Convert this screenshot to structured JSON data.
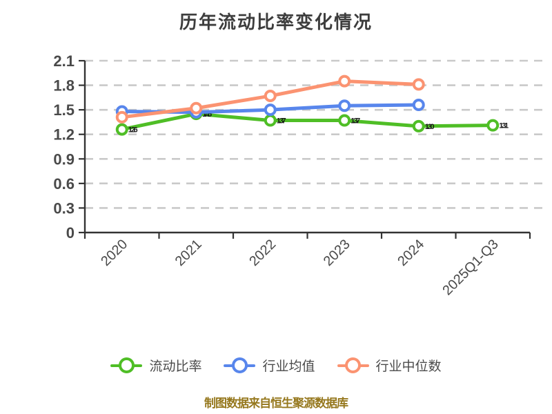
{
  "title": "历年流动比率变化情况",
  "footer": {
    "source_note": "制图数据来自恒生聚源数据库"
  },
  "colors": {
    "current_ratio_green": "#4fbe26",
    "industry_mean_blue": "#5886ec",
    "industry_median_orange": "#fb9371",
    "axis_line": "#333333",
    "grid_line": "#c9c9c9",
    "tick_label": "#4a4a4a",
    "title_text": "#3d3d3d",
    "footer_text": "#96781e",
    "data_label": "#151515"
  },
  "chart_data": {
    "type": "line",
    "title": "历年流动比率变化情况",
    "categories": [
      "2020",
      "2021",
      "2022",
      "2023",
      "2024",
      "2025Q1-Q3"
    ],
    "series": [
      {
        "name": "流动比率",
        "color": "#4fbe26",
        "values": [
          1.26,
          1.45,
          1.37,
          1.37,
          1.3,
          1.31
        ],
        "labels_visible": true,
        "marker": "circle-empty"
      },
      {
        "name": "行业均值",
        "color": "#5886ec",
        "values": [
          1.48,
          1.47,
          1.5,
          1.55,
          1.56,
          null
        ],
        "labels_visible": false,
        "marker": "circle-empty"
      },
      {
        "name": "行业中位数",
        "color": "#fb9371",
        "values": [
          1.41,
          1.52,
          1.67,
          1.85,
          1.81,
          null
        ],
        "labels_visible": false,
        "marker": "circle-empty"
      }
    ],
    "xlabel": "",
    "ylabel": "",
    "ylim": [
      0,
      2.1
    ],
    "ytick_step": 0.3,
    "ytick_labels": [
      "0",
      "0.3",
      "0.6",
      "0.9",
      "1.2",
      "1.5",
      "1.8",
      "2.1"
    ],
    "grid": "horizontal-dashed",
    "x_label_rotation": -45,
    "legend_position": "bottom"
  }
}
